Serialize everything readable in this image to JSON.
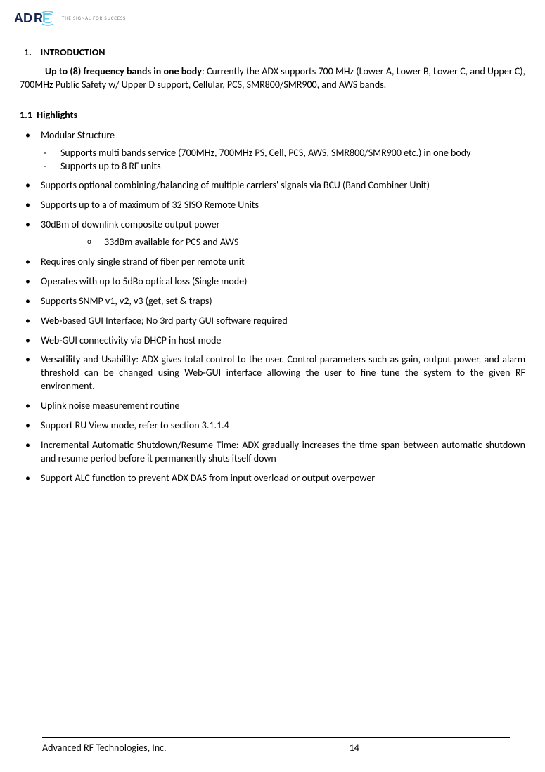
{
  "logo": {
    "text": "ADRF",
    "color_navy": "#16244f",
    "color_cyan": "#5ec9e8",
    "tagline": "THE SIGNAL FOR SUCCESS"
  },
  "section": {
    "number": "1.",
    "title": "INTRODUCTION"
  },
  "intro": {
    "lead": "Up to (8) frequency bands in one body",
    "body": ":  Currently the ADX supports 700 MHz (Lower A, Lower B, Lower C, and Upper C), 700MHz Public Safety w/ Upper D support, Cellular, PCS, SMR800/SMR900, and AWS bands."
  },
  "subsection": {
    "number": "1.1",
    "title": "Highlights"
  },
  "bullets": [
    {
      "text": "Modular Structure",
      "dash": [
        "Supports multi bands service (700MHz, 700MHz PS, Cell, PCS, AWS, SMR800/SMR900 etc.) in one body",
        "Supports up to 8 RF units"
      ]
    },
    {
      "text": "Supports optional combining/balancing of multiple carriers' signals via BCU (Band Combiner Unit)"
    },
    {
      "text": "Supports up to a of maximum of 32 SISO Remote Units"
    },
    {
      "text": "30dBm of downlink composite output power",
      "circle": [
        "33dBm available for PCS and AWS"
      ]
    },
    {
      "text": "Requires only single strand of fiber per remote unit"
    },
    {
      "text": "Operates with up to 5dBo optical loss (Single mode)"
    },
    {
      "text": "Supports SNMP v1, v2, v3 (get, set & traps)"
    },
    {
      "text": "Web-based GUI Interface; No 3rd party GUI software required"
    },
    {
      "text": "Web-GUI connectivity via DHCP in host mode"
    },
    {
      "text": "Versatility and Usability: ADX gives total control to the user.  Control parameters such as gain, output power, and alarm threshold can be changed using Web-GUI interface allowing the user to fine tune the system to the given RF environment."
    },
    {
      "text": "Uplink noise measurement routine"
    },
    {
      "text": "Support RU View mode, refer to section 3.1.1.4"
    },
    {
      "text": "Incremental Automatic Shutdown/Resume Time: ADX gradually increases the time span between automatic shutdown and resume period before it permanently shuts itself down"
    },
    {
      "text": "Support ALC function to prevent ADX DAS from input overload or output overpower"
    }
  ],
  "footer": {
    "company": "Advanced RF Technologies, Inc.",
    "page": "14"
  },
  "colors": {
    "text": "#000000",
    "background": "#ffffff",
    "tagline": "#7a7a7a"
  }
}
